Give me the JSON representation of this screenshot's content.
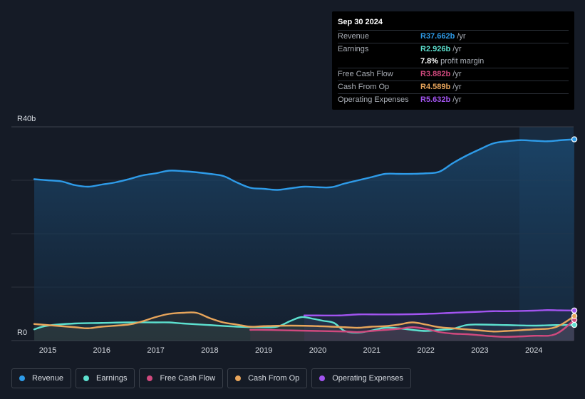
{
  "colors": {
    "revenue": "#2e9be8",
    "earnings": "#5de0cf",
    "fcf": "#d0497e",
    "cfo": "#e8a55b",
    "opex": "#a254f0"
  },
  "tooltip": {
    "date": "Sep 30 2024",
    "rows": [
      {
        "label": "Revenue",
        "value": "R37.662b",
        "unit": " /yr",
        "color": "#2e9be8"
      },
      {
        "label": "Earnings",
        "value": "R2.926b",
        "unit": " /yr",
        "color": "#5de0cf"
      },
      {
        "label": "",
        "value": "7.8%",
        "unit": " profit margin",
        "color": "#ffffff"
      },
      {
        "label": "Free Cash Flow",
        "value": "R3.882b",
        "unit": " /yr",
        "color": "#d0497e"
      },
      {
        "label": "Cash From Op",
        "value": "R4.589b",
        "unit": " /yr",
        "color": "#e8a55b"
      },
      {
        "label": "Operating Expenses",
        "value": "R5.632b",
        "unit": " /yr",
        "color": "#a254f0"
      }
    ]
  },
  "legend": [
    {
      "label": "Revenue",
      "color": "#2e9be8"
    },
    {
      "label": "Earnings",
      "color": "#5de0cf"
    },
    {
      "label": "Free Cash Flow",
      "color": "#d0497e"
    },
    {
      "label": "Cash From Op",
      "color": "#e8a55b"
    },
    {
      "label": "Operating Expenses",
      "color": "#a254f0"
    }
  ],
  "chart_data": {
    "type": "line",
    "y_top_label": "R40b",
    "y_bottom_label": "R0",
    "ylim": [
      0,
      40
    ],
    "xlim": [
      2014.55,
      2024.75
    ],
    "x_ticks": [
      2015,
      2016,
      2017,
      2018,
      2019,
      2020,
      2021,
      2022,
      2023,
      2024
    ],
    "x_tick_labels": [
      "2015",
      "2016",
      "2017",
      "2018",
      "2019",
      "2020",
      "2021",
      "2022",
      "2023",
      "2024"
    ],
    "series": [
      {
        "name": "Revenue",
        "key": "revenue",
        "area": true,
        "x": [
          2014.75,
          2015.0,
          2015.25,
          2015.5,
          2015.75,
          2016.0,
          2016.25,
          2016.5,
          2016.75,
          2017.0,
          2017.25,
          2017.5,
          2017.75,
          2018.0,
          2018.25,
          2018.5,
          2018.75,
          2019.0,
          2019.25,
          2019.5,
          2019.75,
          2020.0,
          2020.25,
          2020.5,
          2020.75,
          2021.0,
          2021.25,
          2021.5,
          2021.75,
          2022.0,
          2022.25,
          2022.5,
          2022.75,
          2023.0,
          2023.25,
          2023.5,
          2023.75,
          2024.0,
          2024.25,
          2024.5,
          2024.75
        ],
        "values": [
          30.2,
          30.0,
          29.8,
          29.1,
          28.8,
          29.2,
          29.6,
          30.2,
          30.9,
          31.3,
          31.8,
          31.7,
          31.5,
          31.2,
          30.8,
          29.6,
          28.6,
          28.4,
          28.2,
          28.5,
          28.8,
          28.7,
          28.7,
          29.4,
          30.0,
          30.6,
          31.2,
          31.2,
          31.2,
          31.3,
          31.6,
          33.2,
          34.6,
          35.8,
          36.9,
          37.3,
          37.5,
          37.4,
          37.3,
          37.5,
          37.66
        ]
      },
      {
        "name": "Earnings",
        "key": "earnings",
        "x": [
          2014.75,
          2015.0,
          2015.5,
          2016.0,
          2016.5,
          2017.0,
          2017.25,
          2017.5,
          2018.0,
          2018.5,
          2019.0,
          2019.25,
          2019.5,
          2019.7,
          2019.9,
          2020.1,
          2020.3,
          2020.5,
          2020.75,
          2021.0,
          2021.25,
          2021.5,
          2021.75,
          2022.0,
          2022.25,
          2022.5,
          2022.75,
          2023.0,
          2023.5,
          2024.0,
          2024.4,
          2024.75
        ],
        "values": [
          2.1,
          2.8,
          3.2,
          3.3,
          3.4,
          3.4,
          3.4,
          3.2,
          2.9,
          2.6,
          2.5,
          2.6,
          3.7,
          4.4,
          4.1,
          3.7,
          3.3,
          1.8,
          1.5,
          1.9,
          2.4,
          2.3,
          2.0,
          1.8,
          2.0,
          2.2,
          2.9,
          3.0,
          2.9,
          2.8,
          2.9,
          2.93
        ]
      },
      {
        "name": "Free Cash Flow",
        "key": "fcf",
        "x": [
          2018.75,
          2019.0,
          2019.5,
          2020.0,
          2020.5,
          2020.75,
          2021.0,
          2021.5,
          2021.75,
          2022.0,
          2022.25,
          2022.5,
          2022.75,
          2023.0,
          2023.25,
          2023.5,
          2024.0,
          2024.4,
          2024.75
        ],
        "values": [
          2.0,
          2.0,
          1.9,
          1.8,
          1.7,
          1.6,
          1.8,
          2.2,
          2.5,
          2.2,
          1.6,
          1.3,
          1.2,
          1.0,
          0.8,
          0.7,
          0.9,
          1.2,
          3.88
        ]
      },
      {
        "name": "Cash From Op",
        "key": "cfo",
        "x": [
          2014.75,
          2015.0,
          2015.5,
          2015.75,
          2016.0,
          2016.5,
          2016.75,
          2017.0,
          2017.25,
          2017.5,
          2017.75,
          2018.0,
          2018.25,
          2018.5,
          2018.75,
          2019.0,
          2019.5,
          2020.0,
          2020.5,
          2020.75,
          2021.0,
          2021.25,
          2021.5,
          2021.75,
          2022.0,
          2022.25,
          2022.5,
          2022.75,
          2023.0,
          2023.25,
          2023.5,
          2024.0,
          2024.4,
          2024.75
        ],
        "values": [
          3.1,
          2.9,
          2.5,
          2.3,
          2.6,
          3.0,
          3.6,
          4.4,
          5.0,
          5.2,
          5.2,
          4.2,
          3.4,
          3.0,
          2.6,
          2.7,
          2.8,
          2.7,
          2.5,
          2.4,
          2.6,
          2.7,
          3.0,
          3.4,
          3.0,
          2.5,
          2.3,
          2.1,
          1.9,
          1.7,
          1.8,
          2.1,
          2.5,
          4.59
        ]
      },
      {
        "name": "Operating Expenses",
        "key": "opex",
        "x": [
          2019.75,
          2020.0,
          2020.4,
          2020.75,
          2021.0,
          2021.5,
          2022.0,
          2022.5,
          2023.0,
          2023.25,
          2023.5,
          2024.0,
          2024.25,
          2024.5,
          2024.75
        ],
        "values": [
          4.7,
          4.7,
          4.7,
          4.9,
          4.9,
          4.9,
          5.0,
          5.2,
          5.4,
          5.5,
          5.5,
          5.6,
          5.7,
          5.65,
          5.63
        ]
      }
    ]
  }
}
